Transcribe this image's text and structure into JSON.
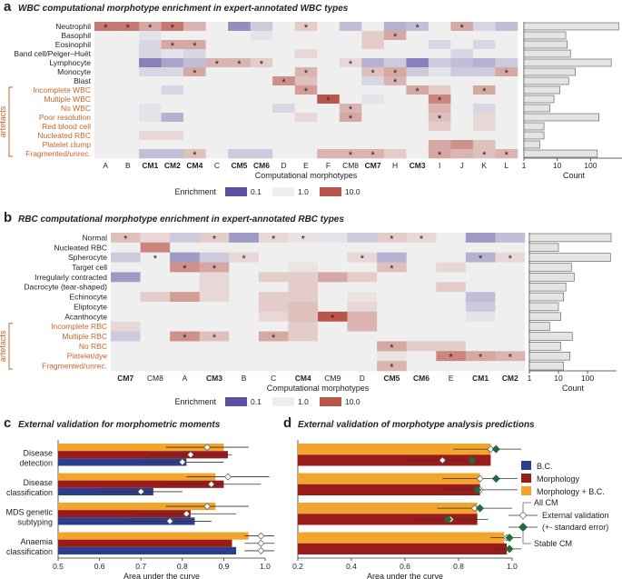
{
  "colors": {
    "low": "#5a4fa2",
    "mid": "#efefef",
    "high": "#b9564a",
    "artefact": "#c8642b",
    "bc": "#2c3e8c",
    "morph": "#9b1b1b",
    "both": "#f2a42d",
    "marker": "#1f6b3a"
  },
  "chart_data": [
    {
      "type": "heatmap",
      "panel": "a",
      "title": "WBC computational morphotype enrichment in expert-annotated WBC types",
      "xlabel": "Computational morphotypes",
      "rows": [
        "Neutrophil",
        "Basophil",
        "Eosinophil",
        "Band cell/Pelger–Huët",
        "Lymphocyte",
        "Monocyte",
        "Blast",
        "Incomplete WBC",
        "Multiple WBC",
        "No WBC",
        "Poor resolution",
        "Red blood cell",
        "Nucleated RBC",
        "Platelet clump",
        "Fragmented/unrec."
      ],
      "artefact_from": 7,
      "artefact_label": "artefacts",
      "cols": [
        "A",
        "B",
        "CM1",
        "CM2",
        "CM4",
        "C",
        "CM5",
        "CM6",
        "D",
        "E",
        "F",
        "CM8",
        "CM7",
        "H",
        "CM3",
        "I",
        "J",
        "K",
        "L"
      ],
      "bold_cols": [
        "CM1",
        "CM2",
        "CM4",
        "CM5",
        "CM6",
        "CM7",
        "CM3"
      ],
      "values": [
        [
          1,
          1,
          0.6,
          1,
          0.5,
          0,
          -0.8,
          -0.3,
          0,
          0.3,
          0,
          -0.4,
          0,
          -0.5,
          -0.4,
          0,
          0.6,
          -0.2,
          -0.4
        ],
        [
          0,
          0,
          -0.1,
          0,
          0,
          0,
          0,
          -0.1,
          0,
          0,
          0,
          0,
          0.3,
          0.6,
          0,
          0,
          0,
          0,
          0
        ],
        [
          0,
          0,
          -0.2,
          0.6,
          0.6,
          0,
          0,
          0,
          0,
          0,
          0,
          0,
          0.3,
          0,
          0,
          -0.2,
          0,
          -0.2,
          0
        ],
        [
          0,
          0,
          -0.2,
          -0.1,
          -0.2,
          0,
          0,
          0,
          0,
          0.2,
          0,
          0,
          0,
          0,
          0,
          0,
          -0.2,
          0,
          0
        ],
        [
          0,
          0,
          -0.9,
          -0.6,
          -0.4,
          0.5,
          0.5,
          0.3,
          0,
          0,
          0,
          0.2,
          -0.5,
          -0.3,
          -0.9,
          -0.3,
          -0.4,
          -0.5,
          -0.3
        ],
        [
          0,
          0,
          -0.2,
          -0.2,
          0.6,
          0,
          0,
          0,
          0,
          0.5,
          0,
          0,
          0.4,
          0.6,
          -0.3,
          -0.1,
          -0.3,
          -0.3,
          0.6
        ],
        [
          0,
          0,
          0,
          0,
          0,
          0,
          0,
          0,
          0.8,
          0.4,
          0,
          0,
          -0.2,
          0.5,
          0,
          0,
          0,
          0,
          0
        ],
        [
          0,
          0,
          0,
          -0.2,
          0,
          0,
          0,
          0,
          0,
          0.7,
          0,
          0,
          0,
          0,
          0.6,
          0.3,
          0,
          0.6,
          0
        ],
        [
          0,
          0,
          0,
          0,
          0,
          0,
          0,
          0,
          0,
          0,
          1.6,
          0,
          -0.1,
          0,
          0,
          0.9,
          0,
          0,
          0
        ],
        [
          0,
          0,
          -0.1,
          0,
          0,
          0,
          0,
          0,
          -0.2,
          0,
          0,
          0.5,
          0,
          0,
          0,
          0.5,
          0,
          -0.2,
          0
        ],
        [
          0,
          0,
          -0.1,
          -0.5,
          0,
          0,
          0,
          0,
          0,
          0.2,
          0,
          0.6,
          0,
          0,
          0,
          0.4,
          0,
          0.2,
          0
        ],
        [
          0,
          0,
          0,
          0,
          0,
          0,
          0,
          0,
          0,
          0,
          0,
          0,
          0,
          0,
          0,
          0.3,
          0,
          0.2,
          0
        ],
        [
          0,
          0,
          0.2,
          0.2,
          0,
          0,
          0,
          0,
          0,
          0,
          0,
          0,
          0,
          0,
          0,
          0,
          0,
          0,
          0
        ],
        [
          0,
          0,
          0,
          0,
          0,
          0,
          0,
          0,
          0,
          0,
          0,
          0,
          0,
          0,
          0,
          0.6,
          0.8,
          0.4,
          0
        ],
        [
          0,
          0,
          -0.4,
          -0.4,
          0.4,
          0,
          -0.3,
          -0.3,
          0,
          0,
          0.5,
          0.5,
          0.5,
          0.3,
          0,
          0.6,
          0.5,
          0.4,
          0.5
        ]
      ],
      "stars": [
        [
          0,
          0
        ],
        [
          0,
          1
        ],
        [
          0,
          2
        ],
        [
          0,
          3
        ],
        [
          0,
          9
        ],
        [
          0,
          14
        ],
        [
          0,
          16
        ],
        [
          2,
          3
        ],
        [
          2,
          4
        ],
        [
          4,
          5
        ],
        [
          4,
          6
        ],
        [
          4,
          7
        ],
        [
          4,
          11
        ],
        [
          5,
          4
        ],
        [
          5,
          9
        ],
        [
          5,
          12
        ],
        [
          5,
          13
        ],
        [
          5,
          18
        ],
        [
          6,
          8
        ],
        [
          6,
          13
        ],
        [
          7,
          9
        ],
        [
          7,
          14
        ],
        [
          7,
          17
        ],
        [
          8,
          10
        ],
        [
          8,
          15
        ],
        [
          10,
          11
        ],
        [
          10,
          15
        ],
        [
          14,
          4
        ],
        [
          14,
          11
        ],
        [
          14,
          12
        ],
        [
          14,
          15
        ],
        [
          14,
          17
        ],
        [
          14,
          18
        ],
        [
          1,
          13
        ],
        [
          9,
          11
        ],
        [
          10,
          15
        ]
      ],
      "counts": {
        "values": [
          700,
          18,
          20,
          25,
          420,
          35,
          22,
          12,
          8,
          6,
          180,
          4,
          4,
          3,
          160
        ],
        "ticks": [
          "1",
          "10",
          "100"
        ],
        "xlabel": "Count"
      }
    },
    {
      "type": "heatmap",
      "panel": "b",
      "title": "RBC computational morphotype enrichment in expert-annotated RBC types",
      "xlabel": "Computational morphotypes",
      "rows": [
        "Normal",
        "Nucleated RBC",
        "Spherocyte",
        "Target cell",
        "Irregularly contracted",
        "Dacrocyte (tear-shaped)",
        "Echinocyte",
        "Eliptocyte",
        "Acanthocyte",
        "Incomplete RBC",
        "Multiple RBC",
        "No RBC",
        "Platelet/dye",
        "Fragmented/unrec."
      ],
      "artefact_from": 9,
      "artefact_label": "artefacts",
      "cols": [
        "CM7",
        "CM8",
        "A",
        "CM3",
        "B",
        "C",
        "CM4",
        "CM9",
        "D",
        "CM5",
        "CM6",
        "E",
        "CM1",
        "CM2"
      ],
      "bold_cols": [
        "CM7",
        "CM3",
        "CM4",
        "CM5",
        "CM6",
        "CM1",
        "CM2"
      ],
      "values": [
        [
          0.4,
          0.2,
          -0.3,
          0.3,
          -0.7,
          0.2,
          0.1,
          -0.1,
          -0.3,
          0.3,
          0.2,
          0,
          -0.7,
          -0.4
        ],
        [
          0,
          0.9,
          0,
          0,
          0,
          0,
          0,
          0,
          0,
          0,
          0,
          0,
          0,
          0
        ],
        [
          -0.3,
          0,
          -0.7,
          -0.3,
          0.2,
          0,
          0,
          0,
          0.2,
          -0.5,
          0,
          0,
          -0.5,
          0.2
        ],
        [
          0,
          0,
          0.8,
          0.6,
          0,
          0,
          0.1,
          0,
          0,
          0.4,
          0,
          0.2,
          0,
          0
        ],
        [
          -0.7,
          0,
          0,
          0.2,
          0,
          0.3,
          0.3,
          0.6,
          0.3,
          0,
          0,
          0,
          0,
          0
        ],
        [
          0,
          0,
          0,
          0.2,
          0,
          0,
          0.3,
          0,
          0,
          0,
          0,
          0.3,
          0,
          0
        ],
        [
          0,
          0.3,
          0.7,
          0.2,
          0,
          0.3,
          0.3,
          0,
          0.1,
          0,
          0,
          0,
          -0.4,
          0
        ],
        [
          0,
          0,
          0,
          0,
          0,
          0.3,
          0.4,
          0,
          0.2,
          0,
          0,
          0,
          -0.3,
          0
        ],
        [
          0,
          0,
          0,
          0,
          0,
          0.2,
          0.4,
          1.3,
          0.5,
          0,
          0,
          0,
          -0.1,
          0
        ],
        [
          0.2,
          0,
          0,
          0,
          0,
          0,
          0.3,
          0,
          0.5,
          0,
          0,
          0,
          0,
          0
        ],
        [
          -0.3,
          0,
          0.8,
          0.4,
          0,
          0.6,
          0.3,
          0,
          0,
          0,
          0,
          0,
          0,
          0
        ],
        [
          0,
          0,
          0,
          0,
          0,
          0,
          0,
          0,
          0,
          0.6,
          0.3,
          0.3,
          0,
          0
        ],
        [
          0,
          0,
          0,
          0,
          0,
          0,
          0,
          0,
          0,
          0.1,
          0,
          0.9,
          0.6,
          0.5
        ],
        [
          0,
          0,
          0,
          0,
          0,
          0,
          0,
          0,
          0,
          0.5,
          0,
          0,
          0,
          0
        ]
      ],
      "stars": [
        [
          0,
          0
        ],
        [
          0,
          3
        ],
        [
          0,
          5
        ],
        [
          0,
          6
        ],
        [
          0,
          9
        ],
        [
          0,
          10
        ],
        [
          2,
          1
        ],
        [
          2,
          4
        ],
        [
          2,
          8
        ],
        [
          2,
          12
        ],
        [
          2,
          13
        ],
        [
          3,
          2
        ],
        [
          3,
          3
        ],
        [
          3,
          9
        ],
        [
          8,
          7
        ],
        [
          10,
          2
        ],
        [
          10,
          3
        ],
        [
          10,
          5
        ],
        [
          11,
          9
        ],
        [
          12,
          11
        ],
        [
          12,
          12
        ],
        [
          12,
          13
        ],
        [
          13,
          9
        ]
      ],
      "counts": {
        "values": [
          650,
          10,
          620,
          28,
          35,
          18,
          15,
          10,
          12,
          5,
          30,
          12,
          25,
          15
        ],
        "ticks": [
          "1",
          "10",
          "100"
        ],
        "xlabel": "Count"
      }
    },
    {
      "type": "bar",
      "panel": "c",
      "title": "External validation for morphometric moments",
      "xlabel": "Area under the curve",
      "xlim": [
        0.5,
        1.0
      ],
      "xticks": [
        "0.5",
        "0.6",
        "0.7",
        "0.8",
        "0.9",
        "1.0"
      ],
      "categories": [
        "Disease detection",
        "Disease classification",
        "MDS genetic subtyping",
        "Anaemia classification"
      ],
      "series": [
        {
          "name": "Morphology + B.C.",
          "values": [
            0.9,
            0.88,
            0.88,
            0.96
          ],
          "ext": [
            0.86,
            0.91,
            0.86,
            0.99
          ],
          "err": [
            0.1,
            0.1,
            0.1,
            0.04
          ]
        },
        {
          "name": "Morphology",
          "values": [
            0.91,
            0.9,
            0.82,
            0.92
          ],
          "ext": [
            0.82,
            0.87,
            0.81,
            0.99
          ],
          "err": [
            0.1,
            0.12,
            0.12,
            0.04
          ]
        },
        {
          "name": "B.C.",
          "values": [
            0.81,
            0.73,
            0.83,
            0.93
          ],
          "ext": [
            0.8,
            0.7,
            0.77,
            0.99
          ],
          "err": [
            0.1,
            0.1,
            0.1,
            0.04
          ]
        }
      ]
    },
    {
      "type": "bar",
      "panel": "d",
      "title": "External validation of morphotype analysis predictions",
      "xlabel": "Area under the curve",
      "xlim": [
        0.2,
        1.0
      ],
      "xticks": [
        "0.2",
        "0.4",
        "0.6",
        "0.8",
        "1.0"
      ],
      "categories": [
        "Disease detection",
        "Disease classification",
        "MDS genetic subtyping",
        "Anaemia classification"
      ],
      "series": [
        {
          "name": "Morphology + B.C.",
          "values": [
            0.92,
            0.88,
            0.87,
            0.97
          ],
          "ext": [
            0.92,
            0.88,
            0.86,
            0.98
          ],
          "stable": [
            0.94,
            0.94,
            0.88,
            0.99
          ],
          "err": [
            0.14,
            0.14,
            0.14,
            0.06
          ]
        },
        {
          "name": "Morphology",
          "values": [
            0.92,
            0.88,
            0.87,
            0.98
          ],
          "ext": [
            0.74,
            0.88,
            0.77,
            0.99
          ],
          "stable": [
            0.85,
            0.87,
            0.76,
            0.99
          ],
          "err": [
            0.14,
            0.14,
            0.14,
            0.06
          ]
        }
      ]
    }
  ],
  "legend_enrichment": {
    "label": "Enrichment",
    "ticks": [
      "0.1",
      "1.0",
      "10.0"
    ]
  },
  "legend_models": {
    "items": [
      "B.C.",
      "Morphology",
      "Morphology + B.C."
    ],
    "all_cm": "All CM",
    "ext_val": "External validation",
    "ext_val2": "(+- standard error)",
    "stable_cm": "Stable CM"
  },
  "panel_letters": [
    "a",
    "b",
    "c",
    "d"
  ]
}
